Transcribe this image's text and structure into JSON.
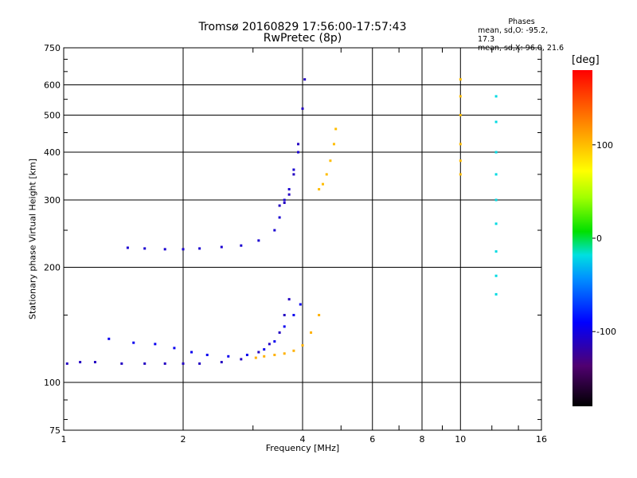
{
  "chart_data": {
    "type": "scatter",
    "title": "Tromsø 20160829 17:56:00-17:57:43",
    "subtitle": "RwPretec (8p)",
    "xlabel": "Frequency [MHz]",
    "ylabel": "Stationary phase Virtual Height [km]",
    "x_scale": "log",
    "y_scale": "log",
    "xlim": [
      1,
      16
    ],
    "ylim": [
      75,
      750
    ],
    "x_ticks": [
      1,
      2,
      4,
      6,
      8,
      10,
      16
    ],
    "x_tick_labels": [
      "1",
      "2",
      "4",
      "6",
      "8",
      "10",
      "16"
    ],
    "y_ticks": [
      75,
      100,
      200,
      300,
      400,
      500,
      600,
      750
    ],
    "y_tick_labels": [
      "75",
      "100",
      "200",
      "300",
      "400",
      "500",
      "600",
      "750"
    ],
    "grid": true,
    "phase_stats": {
      "heading": "Phases",
      "line_o": "mean, sd,O: -95.2, 17.3",
      "line_x": "mean, sd,X:  96.0, 21.6"
    },
    "colorbar": {
      "unit": "[deg]",
      "range": [
        -180,
        180
      ],
      "ticks": [
        100,
        0,
        -100
      ],
      "tick_labels": [
        "100",
        "0",
        "-100"
      ]
    },
    "traces": [
      {
        "freq": [
          1.02,
          1.1,
          1.2,
          1.4,
          1.6,
          1.8,
          2.0,
          2.2,
          2.5,
          2.8,
          3.1,
          3.3,
          3.5,
          3.6,
          3.7
        ],
        "height": [
          112,
          113,
          113,
          112,
          112,
          112,
          112,
          112,
          113,
          115,
          120,
          126,
          135,
          150,
          165
        ],
        "phase_deg": -110
      },
      {
        "freq": [
          1.3,
          1.5,
          1.7,
          1.9,
          2.1,
          2.3,
          2.6,
          2.9,
          3.2,
          3.4,
          3.6,
          3.8,
          3.95
        ],
        "height": [
          130,
          127,
          126,
          123,
          120,
          118,
          117,
          118,
          122,
          128,
          140,
          150,
          160
        ],
        "phase_deg": -95
      },
      {
        "freq": [
          3.05,
          3.2,
          3.4,
          3.6,
          3.8,
          4.0,
          4.2,
          4.4
        ],
        "height": [
          116,
          117,
          118,
          119,
          121,
          125,
          135,
          150
        ],
        "phase_deg": 105
      },
      {
        "freq": [
          1.45,
          1.6,
          1.8,
          2.0,
          2.2,
          2.5,
          2.8,
          3.1,
          3.4,
          3.5,
          3.6,
          3.7,
          3.8,
          3.9
        ],
        "height": [
          225,
          224,
          223,
          223,
          224,
          226,
          228,
          235,
          250,
          270,
          300,
          320,
          360,
          400
        ],
        "phase_deg": -105
      },
      {
        "freq": [
          3.5,
          3.6,
          3.7,
          3.8,
          3.9,
          4.0,
          4.05
        ],
        "height": [
          290,
          295,
          310,
          350,
          420,
          520,
          620
        ],
        "phase_deg": -110
      },
      {
        "freq": [
          4.4,
          4.5,
          4.6,
          4.7,
          4.8,
          4.85
        ],
        "height": [
          320,
          330,
          350,
          380,
          420,
          460
        ],
        "phase_deg": 100
      },
      {
        "freq": [
          12.3,
          12.3,
          12.3,
          12.3,
          12.3,
          12.3,
          12.3,
          12.3,
          12.3
        ],
        "height": [
          170,
          190,
          220,
          260,
          300,
          350,
          400,
          480,
          560
        ],
        "phase_deg": -20
      },
      {
        "freq": [
          10.0,
          10.0,
          10.0,
          10.0,
          10.0,
          10.0
        ],
        "height": [
          350,
          380,
          420,
          500,
          560,
          620
        ],
        "phase_deg": 100
      }
    ]
  }
}
